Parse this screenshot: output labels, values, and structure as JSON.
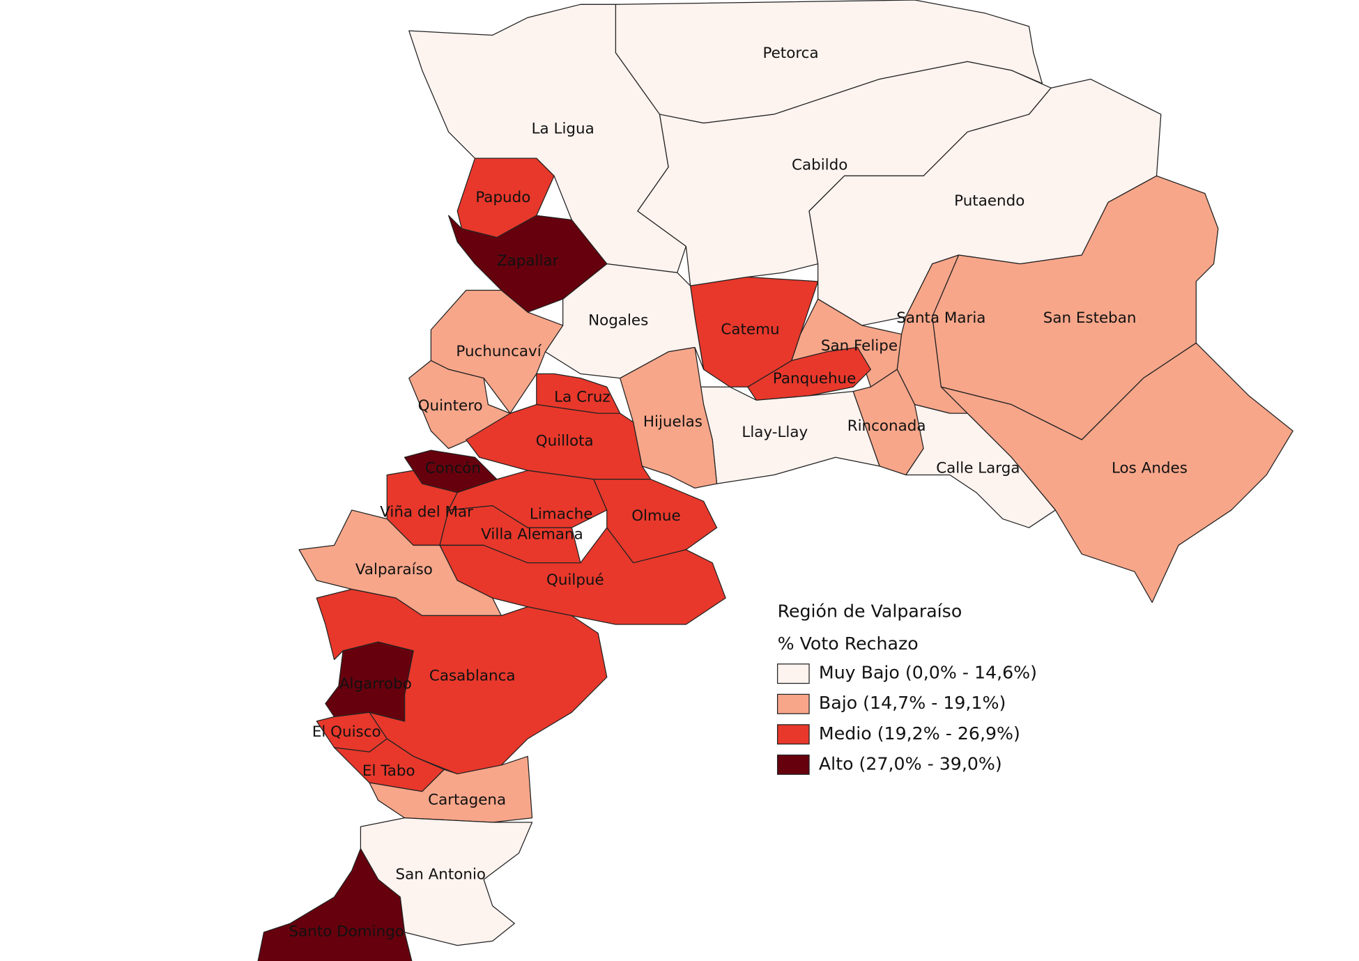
{
  "legend": {
    "title": "Región de Valparaíso",
    "subtitle": "% Voto Rechazo",
    "items": [
      {
        "label": "Muy Bajo (0,0% - 14,6%)",
        "color": "#fdf3ef"
      },
      {
        "label": "Bajo (14,7% - 19,1%)",
        "color": "#f7a68a"
      },
      {
        "label": "Medio (19,2% - 26,9%)",
        "color": "#e8382b"
      },
      {
        "label": "Alto (27,0% - 39,0%)",
        "color": "#67000d"
      }
    ]
  },
  "regions": [
    {
      "name": "Petorca",
      "color": "#fdf3ef"
    },
    {
      "name": "La Ligua",
      "color": "#fdf3ef"
    },
    {
      "name": "Cabildo",
      "color": "#fdf3ef"
    },
    {
      "name": "Putaendo",
      "color": "#fdf3ef"
    },
    {
      "name": "San Esteban",
      "color": "#f7a68a"
    },
    {
      "name": "Los Andes",
      "color": "#f7a68a"
    },
    {
      "name": "Santa Maria",
      "color": "#f7a68a"
    },
    {
      "name": "San Felipe",
      "color": "#f7a68a"
    },
    {
      "name": "Panquehue",
      "color": "#e8382b"
    },
    {
      "name": "Rinconada",
      "color": "#f7a68a"
    },
    {
      "name": "Calle Larga",
      "color": "#fdf3ef"
    },
    {
      "name": "Catemu",
      "color": "#e8382b"
    },
    {
      "name": "Nogales",
      "color": "#fdf3ef"
    },
    {
      "name": "Llay-Llay",
      "color": "#fdf3ef"
    },
    {
      "name": "Hijuelas",
      "color": "#f7a68a"
    },
    {
      "name": "Papudo",
      "color": "#e8382b"
    },
    {
      "name": "Zapallar",
      "color": "#67000d"
    },
    {
      "name": "Puchuncaví",
      "color": "#f7a68a"
    },
    {
      "name": "Quintero",
      "color": "#f7a68a"
    },
    {
      "name": "La Cruz",
      "color": "#e8382b"
    },
    {
      "name": "Quillota",
      "color": "#e8382b"
    },
    {
      "name": "Concón",
      "color": "#67000d"
    },
    {
      "name": "Viña del Mar",
      "color": "#e8382b"
    },
    {
      "name": "Limache",
      "color": "#e8382b"
    },
    {
      "name": "Olmue",
      "color": "#e8382b"
    },
    {
      "name": "Villa Alemana",
      "color": "#e8382b"
    },
    {
      "name": "Quilpué",
      "color": "#e8382b"
    },
    {
      "name": "Valparaíso",
      "color": "#f7a68a"
    },
    {
      "name": "Casablanca",
      "color": "#e8382b"
    },
    {
      "name": "Algarrobo",
      "color": "#67000d"
    },
    {
      "name": "El Quisco",
      "color": "#e8382b"
    },
    {
      "name": "El Tabo",
      "color": "#e8382b"
    },
    {
      "name": "Cartagena",
      "color": "#f7a68a"
    },
    {
      "name": "San Antonio",
      "color": "#fdf3ef"
    },
    {
      "name": "Santo Domingo",
      "color": "#67000d"
    }
  ]
}
